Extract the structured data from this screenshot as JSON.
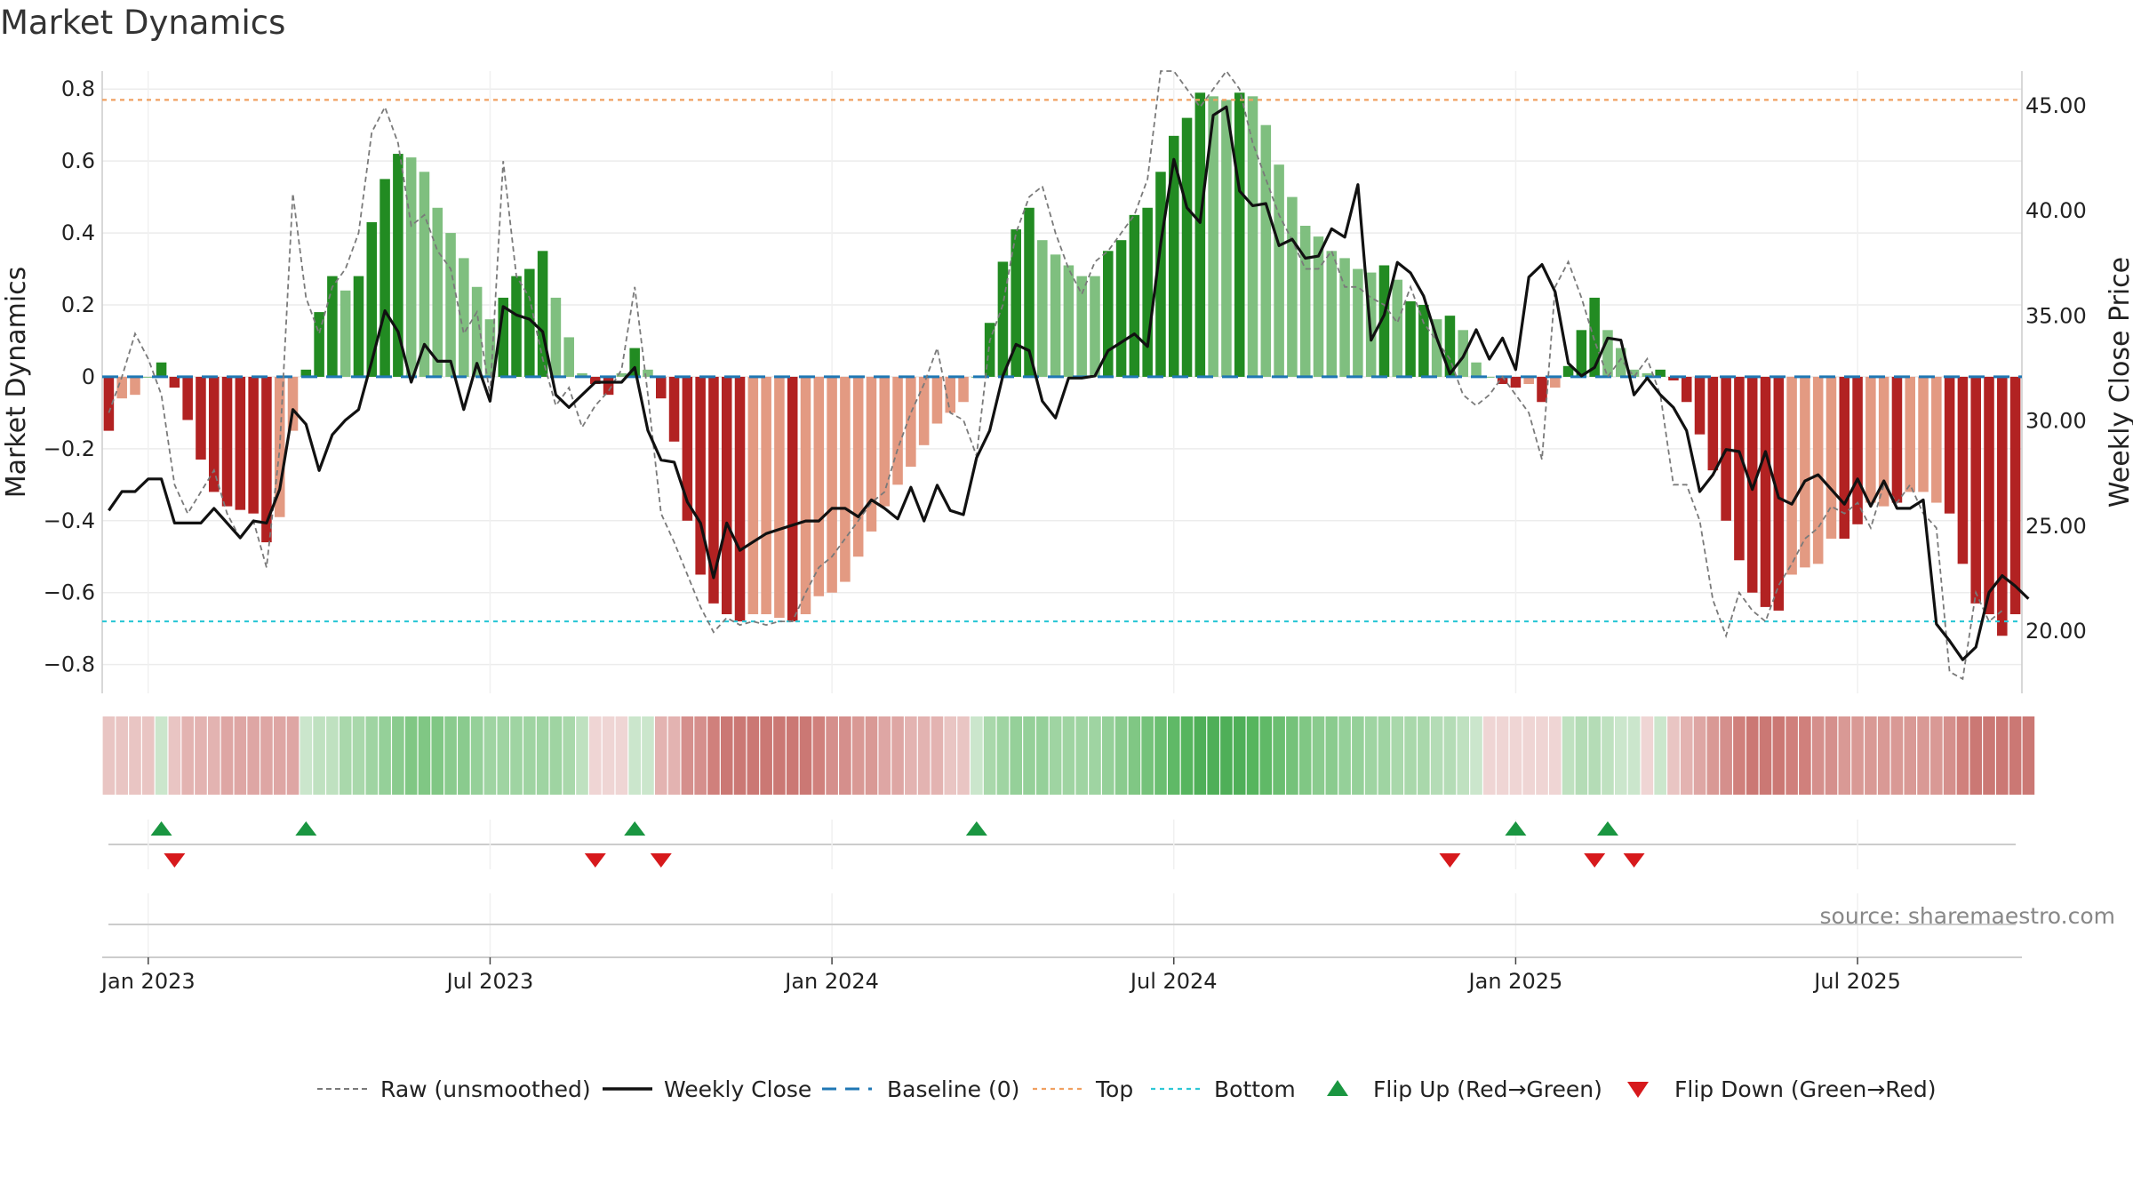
{
  "chart_data": {
    "type": "bar",
    "title": "Market Dynamics",
    "ylabel_left": "Market Dynamics",
    "ylabel_right": "Weekly Close Price",
    "source": "source: sharemaestro.com",
    "x_ticks": [
      "Jan 2023",
      "Jul 2023",
      "Jan 2024",
      "Jul 2024",
      "Jan 2025",
      "Jul 2025"
    ],
    "x_tick_weeks": [
      3,
      29,
      55,
      81,
      107,
      133
    ],
    "y_left_ticks": [
      0.8,
      0.6,
      0.4,
      0.2,
      0,
      -0.2,
      -0.4,
      -0.6,
      -0.8
    ],
    "y_left_tick_labels": [
      "0.8",
      "0.6",
      "0.4",
      "0.2",
      "0",
      "−0.2",
      "−0.4",
      "−0.6",
      "−0.8"
    ],
    "y_right_ticks": [
      45.0,
      40.0,
      35.0,
      30.0,
      25.0,
      20.0
    ],
    "y_right_tick_labels": [
      "45.00",
      "40.00",
      "35.00",
      "30.00",
      "25.00",
      "20.00"
    ],
    "ylim_left": [
      -0.88,
      0.85
    ],
    "ylim_right": [
      17.0,
      46.6
    ],
    "top_level": 0.77,
    "bottom_level": -0.68,
    "grid": true,
    "legend_placement": "bottom",
    "legend": [
      "Raw (unsmoothed)",
      "Weekly Close",
      "Baseline (0)",
      "Top",
      "Bottom",
      "Flip Up (Red→Green)",
      "Flip Down (Green→Red)"
    ],
    "series": [
      {
        "name": "Market Dynamics",
        "values": [
          -0.15,
          -0.06,
          -0.05,
          0,
          0.04,
          -0.03,
          -0.12,
          -0.23,
          -0.32,
          -0.36,
          -0.37,
          -0.38,
          -0.46,
          -0.39,
          -0.15,
          0.02,
          0.18,
          0.28,
          0.24,
          0.28,
          0.43,
          0.55,
          0.62,
          0.61,
          0.57,
          0.47,
          0.4,
          0.33,
          0.25,
          0.16,
          0.22,
          0.28,
          0.3,
          0.35,
          0.22,
          0.11,
          0.01,
          -0.02,
          -0.05,
          0.01,
          0.08,
          0.02,
          -0.06,
          -0.18,
          -0.4,
          -0.55,
          -0.63,
          -0.66,
          -0.68,
          -0.66,
          -0.66,
          -0.67,
          -0.68,
          -0.66,
          -0.61,
          -0.6,
          -0.57,
          -0.5,
          -0.43,
          -0.36,
          -0.3,
          -0.25,
          -0.19,
          -0.13,
          -0.1,
          -0.07,
          0,
          0.15,
          0.32,
          0.41,
          0.47,
          0.38,
          0.34,
          0.31,
          0.28,
          0.28,
          0.35,
          0.38,
          0.45,
          0.47,
          0.57,
          0.67,
          0.72,
          0.79,
          0.78,
          0.77,
          0.79,
          0.78,
          0.7,
          0.59,
          0.5,
          0.42,
          0.39,
          0.35,
          0.33,
          0.3,
          0.29,
          0.31,
          0.27,
          0.21,
          0.2,
          0.16,
          0.17,
          0.13,
          0.04,
          0,
          -0.02,
          -0.03,
          -0.02,
          -0.07,
          -0.03,
          0.03,
          0.13,
          0.22,
          0.13,
          0.08,
          0.02,
          0.01,
          0.02,
          -0.01,
          -0.07,
          -0.16,
          -0.26,
          -0.4,
          -0.51,
          -0.6,
          -0.64,
          -0.65,
          -0.55,
          -0.53,
          -0.52,
          -0.45,
          -0.45,
          -0.41,
          -0.35,
          -0.36,
          -0.35,
          -0.32,
          -0.32,
          -0.35,
          -0.38,
          -0.52,
          -0.63,
          -0.66,
          -0.72,
          -0.66
        ],
        "colors": [
          "D",
          "L",
          "L",
          "L",
          "G",
          "D",
          "D",
          "D",
          "D",
          "D",
          "D",
          "D",
          "D",
          "L",
          "L",
          "G",
          "G",
          "G",
          "L",
          "G",
          "G",
          "G",
          "G",
          "L",
          "L",
          "L",
          "L",
          "L",
          "L",
          "L",
          "G",
          "G",
          "G",
          "G",
          "L",
          "L",
          "L",
          "D",
          "D",
          "L",
          "G",
          "L",
          "D",
          "D",
          "D",
          "D",
          "D",
          "D",
          "D",
          "L",
          "L",
          "L",
          "D",
          "L",
          "L",
          "L",
          "L",
          "L",
          "L",
          "L",
          "L",
          "L",
          "L",
          "L",
          "L",
          "L",
          "L",
          "G",
          "G",
          "G",
          "G",
          "L",
          "L",
          "L",
          "L",
          "L",
          "G",
          "G",
          "G",
          "G",
          "G",
          "G",
          "G",
          "G",
          "L",
          "L",
          "G",
          "L",
          "L",
          "L",
          "L",
          "L",
          "L",
          "L",
          "L",
          "L",
          "L",
          "G",
          "L",
          "G",
          "G",
          "L",
          "G",
          "L",
          "L",
          "L",
          "D",
          "D",
          "L",
          "D",
          "L",
          "G",
          "G",
          "G",
          "L",
          "L",
          "L",
          "L",
          "G",
          "D",
          "D",
          "D",
          "D",
          "D",
          "D",
          "D",
          "D",
          "D",
          "L",
          "L",
          "L",
          "L",
          "D",
          "D",
          "L",
          "L",
          "D",
          "L",
          "L",
          "L",
          "D",
          "D",
          "D",
          "D",
          "D",
          "D",
          "L"
        ]
      },
      {
        "name": "Raw (unsmoothed)",
        "values": [
          -0.1,
          0,
          0.12,
          0.05,
          -0.05,
          -0.3,
          -0.38,
          -0.32,
          -0.26,
          -0.38,
          -0.45,
          -0.4,
          -0.53,
          -0.2,
          0.51,
          0.22,
          0.12,
          0.25,
          0.3,
          0.4,
          0.68,
          0.75,
          0.65,
          0.42,
          0.45,
          0.35,
          0.3,
          0.12,
          0.18,
          -0.05,
          0.6,
          0.28,
          0.22,
          0.05,
          -0.08,
          -0.03,
          -0.14,
          -0.08,
          -0.04,
          0.02,
          0.25,
          -0.05,
          -0.38,
          -0.46,
          -0.55,
          -0.64,
          -0.71,
          -0.67,
          -0.69,
          -0.68,
          -0.69,
          -0.68,
          -0.68,
          -0.6,
          -0.53,
          -0.5,
          -0.45,
          -0.4,
          -0.35,
          -0.32,
          -0.2,
          -0.1,
          -0.02,
          0.08,
          -0.1,
          -0.12,
          -0.22,
          0.1,
          0.2,
          0.4,
          0.5,
          0.53,
          0.4,
          0.3,
          0.23,
          0.32,
          0.35,
          0.4,
          0.45,
          0.55,
          0.85,
          0.85,
          0.8,
          0.75,
          0.8,
          0.85,
          0.8,
          0.65,
          0.55,
          0.45,
          0.38,
          0.3,
          0.3,
          0.35,
          0.25,
          0.25,
          0.22,
          0.2,
          0.15,
          0.25,
          0.15,
          0.1,
          0.05,
          -0.05,
          -0.08,
          -0.05,
          0,
          -0.05,
          -0.1,
          -0.23,
          0.25,
          0.32,
          0.22,
          0.1,
          0,
          0.05,
          0,
          0.05,
          -0.05,
          -0.3,
          -0.3,
          -0.4,
          -0.62,
          -0.72,
          -0.6,
          -0.65,
          -0.68,
          -0.58,
          -0.52,
          -0.45,
          -0.42,
          -0.36,
          -0.38,
          -0.35,
          -0.42,
          -0.3,
          -0.35,
          -0.3,
          -0.38,
          -0.42,
          -0.82,
          -0.84,
          -0.6,
          -0.68,
          -0.65
        ]
      },
      {
        "name": "Weekly Close",
        "values": [
          25.7,
          26.6,
          26.6,
          27.2,
          27.2,
          25.1,
          25.1,
          25.1,
          25.8,
          25.1,
          24.4,
          25.2,
          25.1,
          26.7,
          30.5,
          29.8,
          27.6,
          29.3,
          30.0,
          30.5,
          32.8,
          35.2,
          34.2,
          31.8,
          33.6,
          32.8,
          32.8,
          30.5,
          32.7,
          30.9,
          35.4,
          35.0,
          34.8,
          34.2,
          31.2,
          30.6,
          31.2,
          31.8,
          31.8,
          31.8,
          32.5,
          29.5,
          28.1,
          28.0,
          26.1,
          25.1,
          22.5,
          25.1,
          23.8,
          24.2,
          24.6,
          24.8,
          25.0,
          25.2,
          25.2,
          25.8,
          25.8,
          25.4,
          26.2,
          25.8,
          25.3,
          26.8,
          25.2,
          26.9,
          25.7,
          25.5,
          28.2,
          29.5,
          32.1,
          33.6,
          33.3,
          30.9,
          30.1,
          32.0,
          32.0,
          32.1,
          33.3,
          33.7,
          34.1,
          33.5,
          38.4,
          42.4,
          40.1,
          39.4,
          44.5,
          44.9,
          40.9,
          40.2,
          40.3,
          38.3,
          38.6,
          37.7,
          37.8,
          39.1,
          38.7,
          41.2,
          33.8,
          35.0,
          37.5,
          37.0,
          35.9,
          33.9,
          32.2,
          33.0,
          34.3,
          32.9,
          33.9,
          32.4,
          36.8,
          37.4,
          36.1,
          32.7,
          32.1,
          32.5,
          33.9,
          33.8,
          31.2,
          32.0,
          31.2,
          30.6,
          29.5,
          26.6,
          27.4,
          28.6,
          28.5,
          26.7,
          28.5,
          26.3,
          26.0,
          27.1,
          27.4,
          26.7,
          26.0,
          27.2,
          25.9,
          27.1,
          25.8,
          25.8,
          26.2,
          20.3,
          19.5,
          18.6,
          19.2,
          21.8,
          22.6,
          22.1,
          21.5
        ]
      }
    ],
    "flip_up_weeks": [
      4,
      15,
      40,
      66,
      107,
      114
    ],
    "flip_down_weeks": [
      5,
      37,
      42,
      102,
      113,
      116
    ],
    "strip_colors": [
      "#e9c5c3",
      "#e9c5c3",
      "#e9c5c3",
      "#e9c5c3",
      "#cbe6cc",
      "#e9c5c3",
      "#e3b3b1",
      "#e3b3b1",
      "#e3b3b1",
      "#dea6a4",
      "#dea6a4",
      "#dea6a4",
      "#dea6a4",
      "#dea6a4",
      "#dea6a4",
      "#cbe6cc",
      "#bfe1c0",
      "#bfe1c0",
      "#a9d8ab",
      "#a9d8ab",
      "#9fd4a2",
      "#95d099",
      "#8acb8e",
      "#80c784",
      "#80c784",
      "#80c784",
      "#8acb8e",
      "#8acb8e",
      "#95d099",
      "#9fd4a2",
      "#9fd4a2",
      "#9fd4a2",
      "#9fd4a2",
      "#9fd4a2",
      "#9fd4a2",
      "#a9d8ab",
      "#bfe1c0",
      "#efd5d4",
      "#efd5d4",
      "#efd5d4",
      "#cbe6cc",
      "#cbe6cc",
      "#e3b3b1",
      "#e3b3b1",
      "#d58f8c",
      "#d58f8c",
      "#d0807c",
      "#cb7874",
      "#cb7874",
      "#cb7874",
      "#cb7874",
      "#cb7874",
      "#cb7874",
      "#cb7874",
      "#d0807c",
      "#d58f8c",
      "#d58f8c",
      "#d99995",
      "#d99995",
      "#dea6a4",
      "#dea6a4",
      "#e3b3b1",
      "#e3b3b1",
      "#e3b3b1",
      "#e9c5c3",
      "#e9c5c3",
      "#cbe6cc",
      "#a9d8ab",
      "#9fd4a2",
      "#95d099",
      "#95d099",
      "#95d099",
      "#9fd4a2",
      "#9fd4a2",
      "#9fd4a2",
      "#9fd4a2",
      "#95d099",
      "#8acb8e",
      "#80c784",
      "#75c27a",
      "#6bbe71",
      "#60b967",
      "#56b55e",
      "#4faf58",
      "#4faf58",
      "#4faf58",
      "#4faf58",
      "#56b55e",
      "#60b967",
      "#6bbe71",
      "#75c27a",
      "#80c784",
      "#8acb8e",
      "#8acb8e",
      "#95d099",
      "#95d099",
      "#9fd4a2",
      "#9fd4a2",
      "#a9d8ab",
      "#a9d8ab",
      "#a9d8ab",
      "#b4dcb6",
      "#b4dcb6",
      "#bfe1c0",
      "#cbe6cc",
      "#efd5d4",
      "#efd5d4",
      "#efd5d4",
      "#efd5d4",
      "#efd5d4",
      "#efd5d4",
      "#bfe1c0",
      "#b4dcb6",
      "#b4dcb6",
      "#bfe1c0",
      "#cbe6cc",
      "#cbe6cc",
      "#efd5d4",
      "#cbe6cc",
      "#e9c5c3",
      "#e3b3b1",
      "#dea6a4",
      "#d99995",
      "#d58f8c",
      "#d0807c",
      "#cb7874",
      "#cb7874",
      "#cb7874",
      "#d0807c",
      "#d0807c",
      "#d58f8c",
      "#d58f8c",
      "#d99995",
      "#d99995",
      "#d99995",
      "#d99995",
      "#d99995",
      "#d99995",
      "#d99995",
      "#d99995",
      "#d58f8c",
      "#d0807c",
      "#cb7874",
      "#cb7874",
      "#cb7874",
      "#cb7874",
      "#cb7874"
    ],
    "colors": {
      "dark_green": "#228b22",
      "light_green": "#7fbf7f",
      "dark_red": "#b22222",
      "light_red": "#e39a82",
      "weekly_close": "#111111",
      "raw": "#7a7a7a",
      "baseline": "#1f77b4",
      "top": "#f0a060",
      "bottom": "#2ec7d6",
      "flip_up": "#1a9641",
      "flip_down": "#d7191c"
    }
  }
}
